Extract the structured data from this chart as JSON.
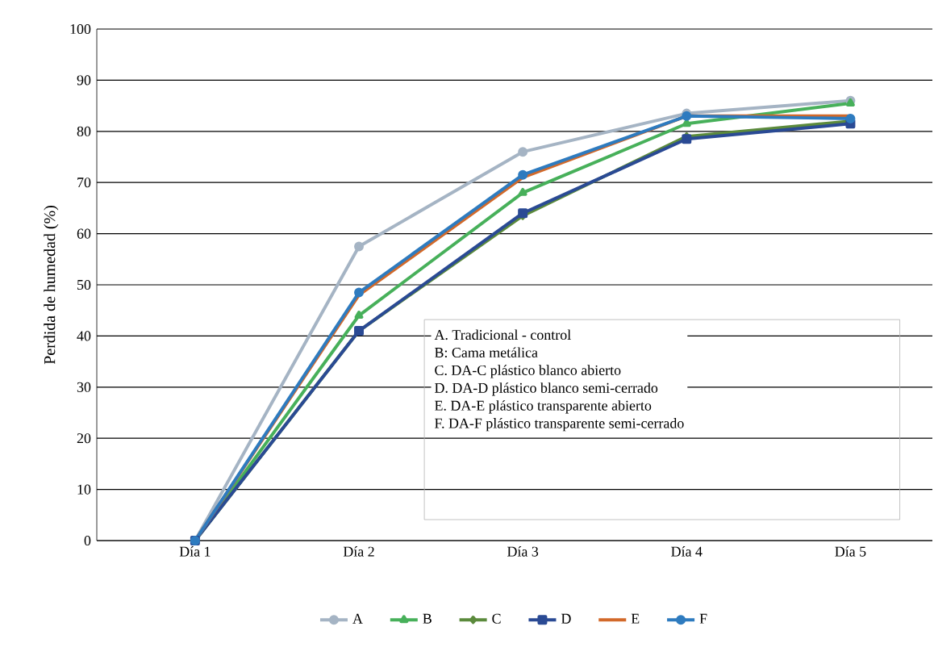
{
  "chart_data": {
    "type": "line",
    "ylabel": "Perdida de humedad (%)",
    "categories": [
      "Día 1",
      "Día 2",
      "Día 3",
      "Día 4",
      "Día 5"
    ],
    "series": [
      {
        "name": "A",
        "color": "#a5b4c4",
        "marker": "circle",
        "values": [
          0,
          57.5,
          76,
          83.5,
          86
        ]
      },
      {
        "name": "B",
        "color": "#47b05a",
        "marker": "triangle",
        "values": [
          0,
          44,
          68,
          81.5,
          85.5
        ]
      },
      {
        "name": "C",
        "color": "#5b8a3c",
        "marker": "diamond",
        "values": [
          0,
          41,
          63.5,
          79,
          82
        ]
      },
      {
        "name": "D",
        "color": "#2a4a94",
        "marker": "square",
        "values": [
          0,
          41,
          64,
          78.5,
          81.5
        ]
      },
      {
        "name": "E",
        "color": "#d2692a",
        "marker": "none",
        "values": [
          0,
          48,
          71,
          83,
          83
        ]
      },
      {
        "name": "F",
        "color": "#2e7bbf",
        "marker": "circle",
        "values": [
          0,
          48.5,
          71.5,
          83,
          82.5
        ]
      }
    ],
    "ylim": [
      0,
      100
    ],
    "yticks": [
      0,
      10,
      20,
      30,
      40,
      50,
      60,
      70,
      80,
      90,
      100
    ],
    "grid": "y",
    "legend": "bottom",
    "line_style": "solid",
    "annotations": [
      "A. Tradicional - control",
      "B: Cama metálica",
      "C. DA-C plástico blanco abierto",
      "D. DA-D plástico blanco semi-cerrado",
      "E. DA-E plástico transparente abierto",
      "F. DA-F plástico transparente semi-cerrado"
    ]
  }
}
